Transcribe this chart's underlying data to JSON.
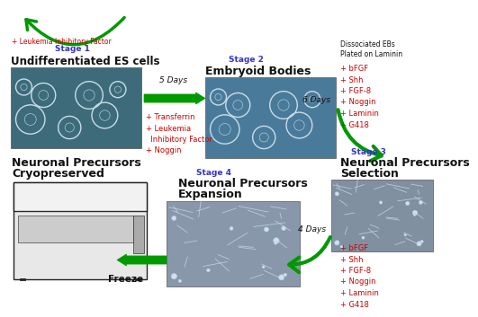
{
  "bg_color": "#ffffff",
  "stage1_label": "Stage 1",
  "stage1_top_text": "+ Leukemia Inhibitory Factor",
  "stage1_title": "Undifferentiated ES cells",
  "stage1_medium": "+ Transferrin\n+ Leukemia\n  Inhibitory Factor\n+ Noggin",
  "stage2_label": "Stage 2",
  "stage2_title": "Embryoid Bodies",
  "stage2_days": "5 Days",
  "stage3_label": "Stage 3",
  "stage3_title_line1": "Neuronal Precursors",
  "stage3_title_line2": "Selection",
  "stage3_factors_title": "Dissociated EBs\nPlated on Laminin",
  "stage3_factors": "+ bFGF\n+ Shh\n+ FGF-8\n+ Noggin\n+ Laminin\n+ G418",
  "stage3_days": "6 Days",
  "stage4_label": "Stage 4",
  "stage4_title_line1": "Neuronal Precursors",
  "stage4_title_line2": "Expansion",
  "stage4_factors": "+ bFGF\n+ Shh\n+ FGF-8\n+ Noggin\n+ Laminin\n+ G418",
  "stage4_days": "4 Days",
  "cryo_title_line1": "Neuronal Precursors",
  "cryo_title_line2": "Cryopreserved",
  "freeze_label": "Freeze",
  "arrow_color": "#009900",
  "text_red": "#cc0000",
  "text_blue": "#3333cc",
  "text_black": "#111111",
  "cell1_color": "#3d6b7a",
  "cell2_color": "#4a7a9a",
  "cell3_color": "#8090a0",
  "cell4_color": "#8898aa"
}
